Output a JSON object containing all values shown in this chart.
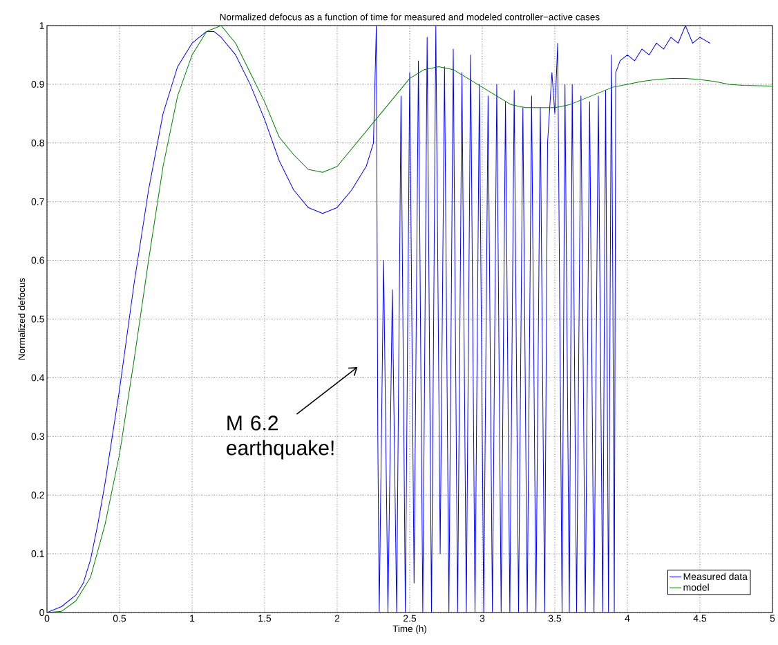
{
  "chart_data": {
    "type": "line",
    "title": "Normalized defocus as a function of time for measured and modeled controller−active cases",
    "xlabel": "Time (h)",
    "ylabel": "Normalized defocus",
    "xlim": [
      0,
      5
    ],
    "ylim": [
      0,
      1
    ],
    "xticks": [
      0,
      0.5,
      1,
      1.5,
      2,
      2.5,
      3,
      3.5,
      4,
      4.5,
      5
    ],
    "yticks": [
      0,
      0.1,
      0.2,
      0.3,
      0.4,
      0.5,
      0.6,
      0.7,
      0.8,
      0.9,
      1
    ],
    "grid": true,
    "legend": "bottom right",
    "marker": "none",
    "line_style": "solid",
    "annotations": [
      "M 6.2 earthquake!"
    ],
    "series": [
      {
        "name": "Measured data",
        "color": "#0000ff",
        "x": [
          0,
          0.1,
          0.2,
          0.25,
          0.3,
          0.35,
          0.4,
          0.45,
          0.5,
          0.55,
          0.6,
          0.7,
          0.8,
          0.9,
          1.0,
          1.1,
          1.15,
          1.2,
          1.3,
          1.4,
          1.5,
          1.6,
          1.7,
          1.8,
          1.9,
          2.0,
          2.1,
          2.2,
          2.25,
          2.27,
          2.28,
          2.29,
          2.32,
          2.35,
          2.38,
          2.41,
          2.44,
          2.47,
          2.5,
          2.53,
          2.56,
          2.59,
          2.62,
          2.65,
          2.68,
          2.71,
          2.74,
          2.77,
          2.8,
          2.83,
          2.86,
          2.89,
          2.92,
          2.95,
          2.98,
          3.01,
          3.04,
          3.07,
          3.1,
          3.13,
          3.16,
          3.19,
          3.22,
          3.25,
          3.28,
          3.31,
          3.34,
          3.37,
          3.4,
          3.43,
          3.45,
          3.48,
          3.5,
          3.52,
          3.55,
          3.57,
          3.6,
          3.62,
          3.65,
          3.68,
          3.71,
          3.74,
          3.77,
          3.8,
          3.83,
          3.85,
          3.87,
          3.89,
          3.9,
          3.91,
          3.92,
          3.95,
          4.0,
          4.05,
          4.1,
          4.15,
          4.2,
          4.25,
          4.3,
          4.35,
          4.4,
          4.45,
          4.5,
          4.57
        ],
        "values": [
          0,
          0.01,
          0.03,
          0.05,
          0.09,
          0.15,
          0.22,
          0.3,
          0.38,
          0.47,
          0.56,
          0.72,
          0.85,
          0.93,
          0.97,
          0.99,
          0.99,
          0.98,
          0.95,
          0.9,
          0.84,
          0.77,
          0.72,
          0.69,
          0.68,
          0.69,
          0.72,
          0.76,
          0.8,
          1.0,
          0.3,
          0,
          0.6,
          0,
          0.55,
          0,
          0.88,
          0,
          0.92,
          0.05,
          0.94,
          0,
          0.98,
          0,
          1.0,
          0.1,
          0.93,
          0,
          0.96,
          0,
          0.92,
          0,
          0.95,
          0,
          0.9,
          0,
          0.88,
          0,
          0.9,
          0,
          0.87,
          0,
          0.89,
          0,
          0.86,
          0,
          0.88,
          0,
          0.86,
          0,
          0.8,
          0.92,
          0.85,
          0.97,
          0,
          0.9,
          0,
          0.9,
          0,
          0.88,
          0,
          0.87,
          0,
          0.88,
          0,
          0.89,
          0,
          0.95,
          0.55,
          0,
          0.92,
          0.94,
          0.95,
          0.94,
          0.96,
          0.95,
          0.97,
          0.96,
          0.98,
          0.97,
          1.0,
          0.97,
          0.98,
          0.97
        ]
      },
      {
        "name": "model",
        "color": "#008000",
        "x": [
          0,
          0.1,
          0.2,
          0.3,
          0.4,
          0.5,
          0.6,
          0.7,
          0.8,
          0.9,
          1.0,
          1.1,
          1.2,
          1.3,
          1.4,
          1.5,
          1.6,
          1.7,
          1.8,
          1.9,
          2.0,
          2.1,
          2.2,
          2.3,
          2.4,
          2.5,
          2.6,
          2.7,
          2.8,
          2.9,
          3.0,
          3.1,
          3.2,
          3.3,
          3.4,
          3.5,
          3.6,
          3.7,
          3.8,
          3.9,
          4.0,
          4.1,
          4.2,
          4.3,
          4.4,
          4.5,
          4.6,
          4.7,
          4.8,
          5.0
        ],
        "values": [
          0,
          0.002,
          0.02,
          0.06,
          0.15,
          0.27,
          0.43,
          0.6,
          0.76,
          0.88,
          0.95,
          0.99,
          1.0,
          0.97,
          0.92,
          0.87,
          0.81,
          0.78,
          0.755,
          0.75,
          0.76,
          0.79,
          0.82,
          0.85,
          0.88,
          0.91,
          0.925,
          0.93,
          0.925,
          0.91,
          0.895,
          0.88,
          0.865,
          0.86,
          0.86,
          0.86,
          0.865,
          0.875,
          0.885,
          0.895,
          0.9,
          0.905,
          0.908,
          0.91,
          0.91,
          0.908,
          0.905,
          0.9,
          0.898,
          0.897
        ]
      }
    ]
  }
}
